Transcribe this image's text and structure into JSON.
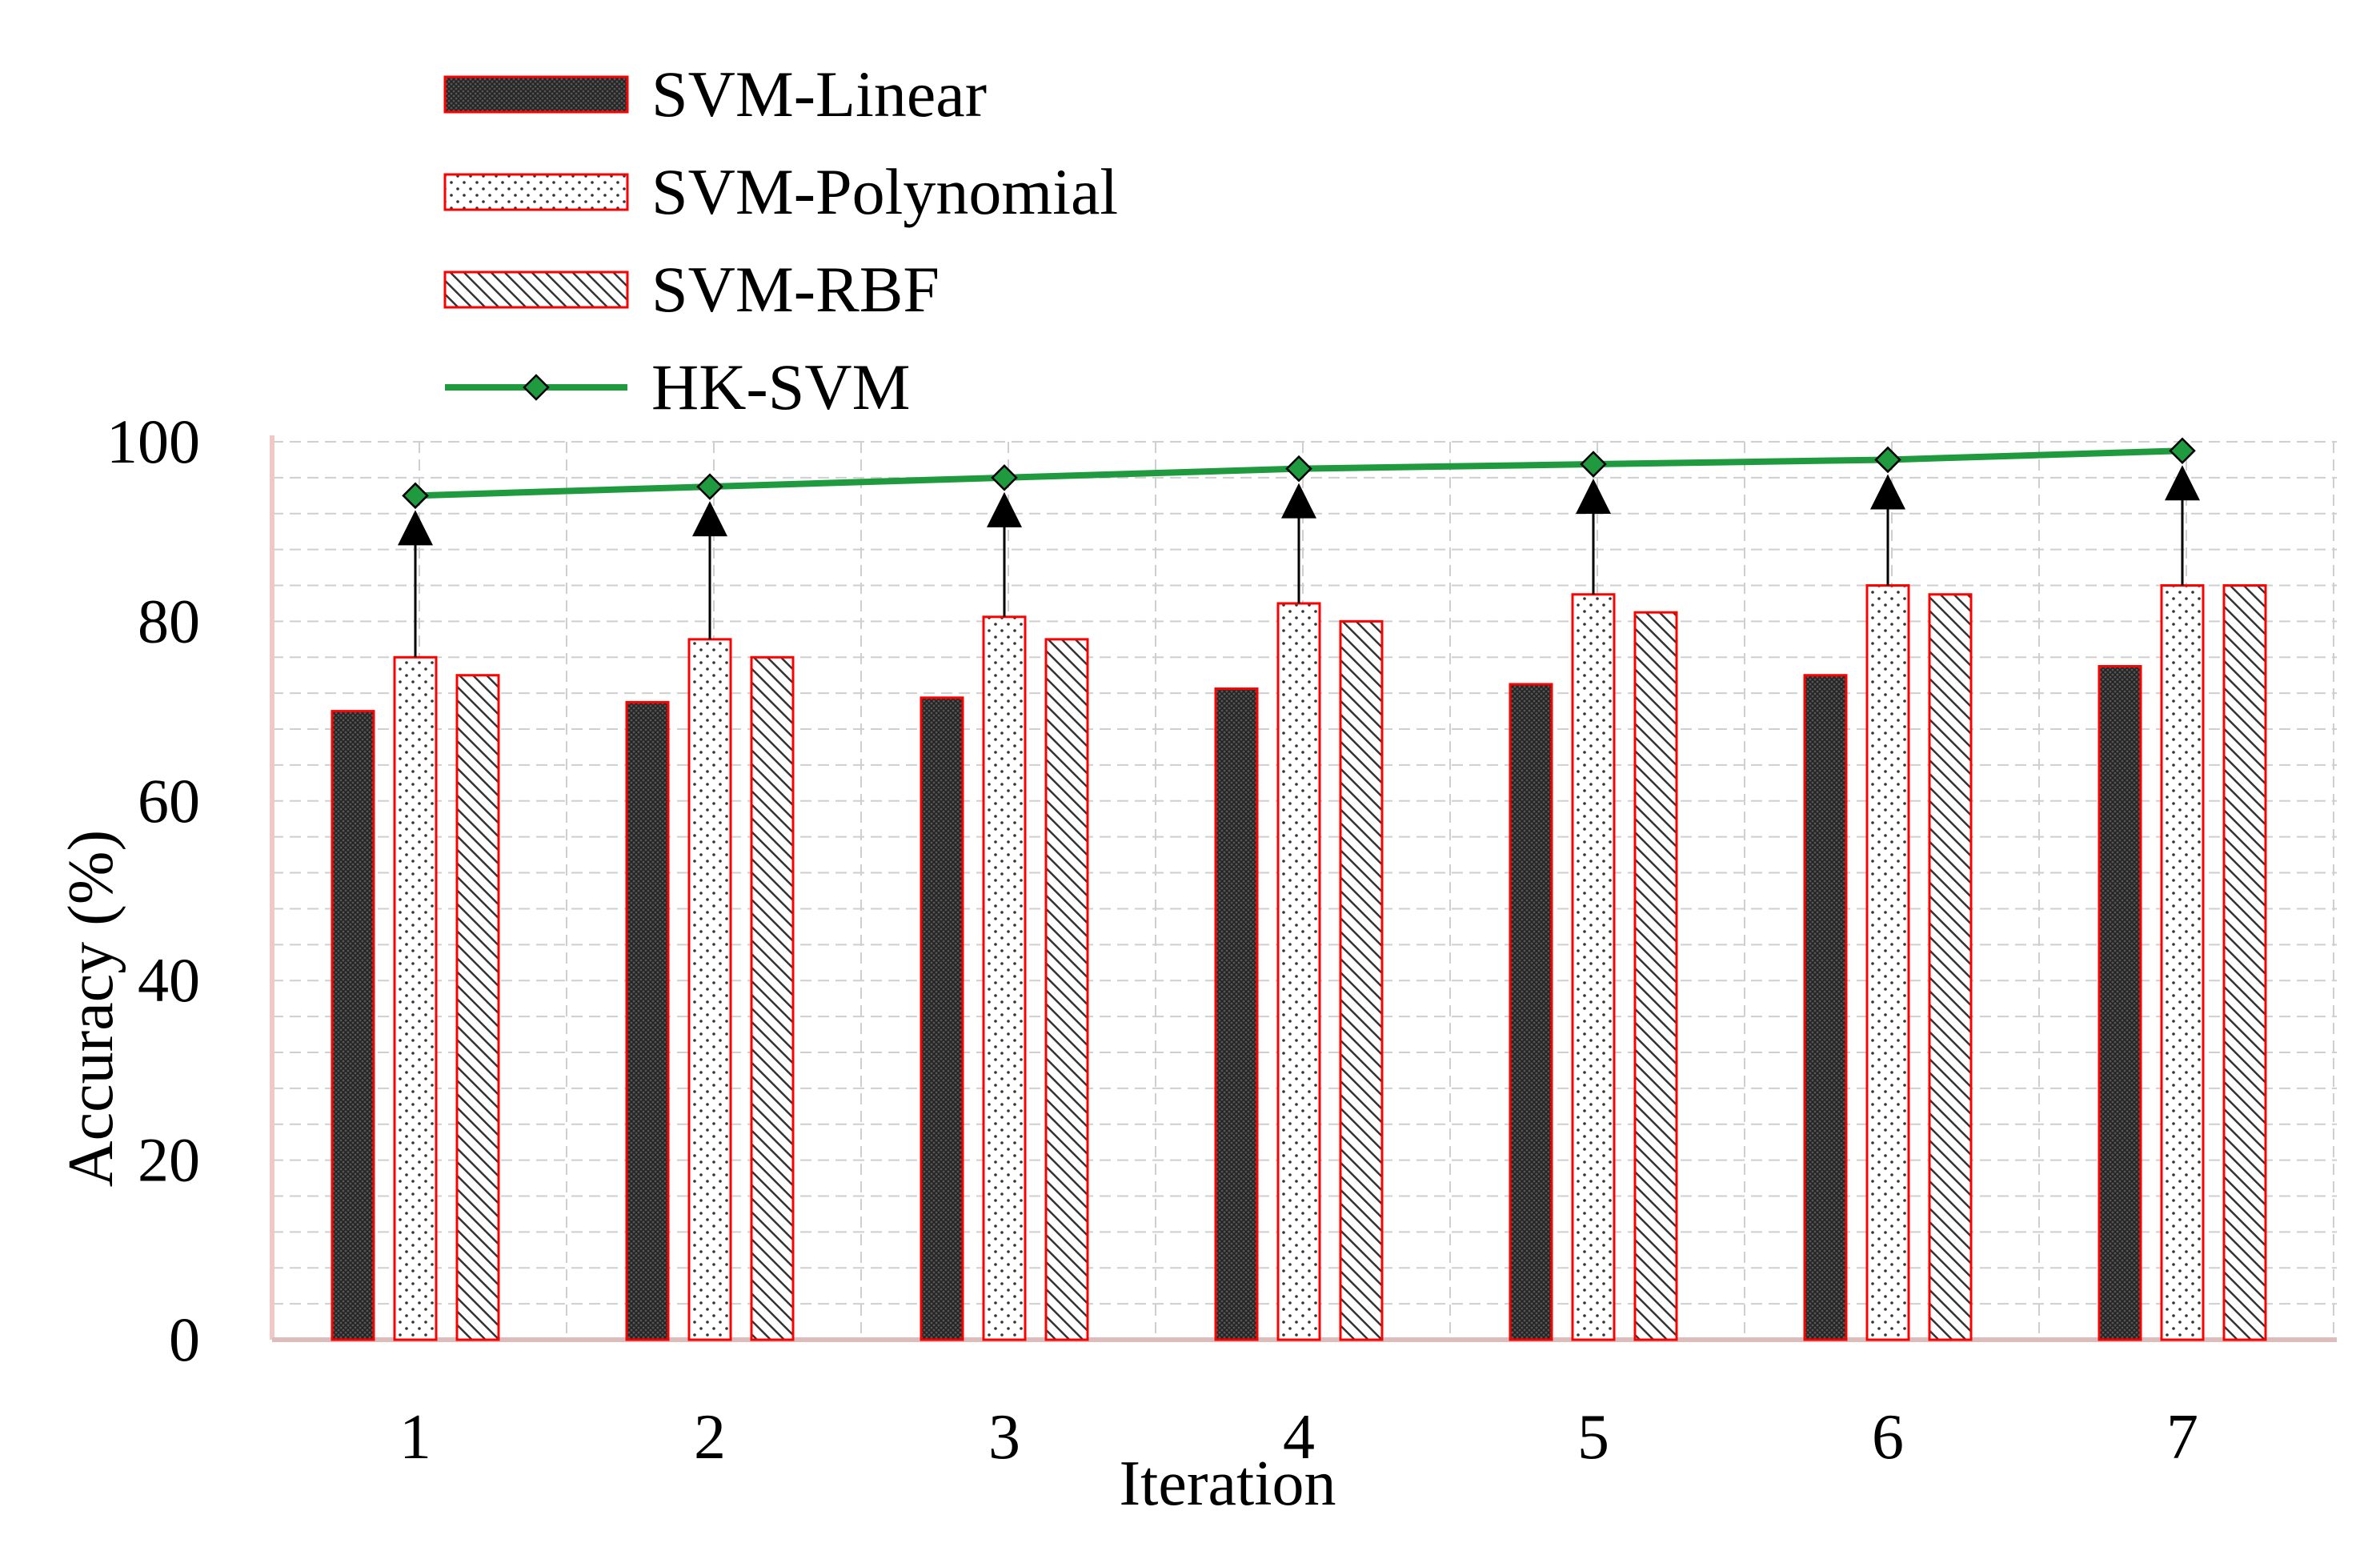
{
  "chart_data": {
    "type": "bar",
    "title": "",
    "xlabel": "Iteration",
    "ylabel": "Accuracy (%)",
    "categories": [
      "1",
      "2",
      "3",
      "4",
      "5",
      "6",
      "7"
    ],
    "ylim": [
      0,
      100
    ],
    "yticks": [
      0,
      20,
      40,
      60,
      80,
      100
    ],
    "grid": true,
    "legend_position": "top-left",
    "series": [
      {
        "name": "SVM-Linear",
        "type": "bar",
        "pattern": "crosshatch-dark",
        "values": [
          70,
          71,
          71.5,
          72.5,
          73,
          74,
          75
        ]
      },
      {
        "name": "SVM-Polynomial",
        "type": "bar",
        "pattern": "dots",
        "values": [
          76,
          78,
          80.5,
          82,
          83,
          84,
          84
        ]
      },
      {
        "name": "SVM-RBF",
        "type": "bar",
        "pattern": "diagonal-hatch",
        "values": [
          74,
          76,
          78,
          80,
          81,
          83,
          84
        ]
      },
      {
        "name": "HK-SVM",
        "type": "line",
        "marker": "diamond",
        "values": [
          94,
          95,
          96,
          97,
          97.5,
          98,
          99
        ]
      }
    ],
    "annotations": "Upward arrows from each SVM-Polynomial bar to the HK-SVM point"
  },
  "colors": {
    "bar_border": "#ff0000",
    "line": "#1f9a3f",
    "marker_fill": "#1f9a3f",
    "arrow": "#000000",
    "grid": "#cfcfcf",
    "axis": "#f0c8c8"
  }
}
